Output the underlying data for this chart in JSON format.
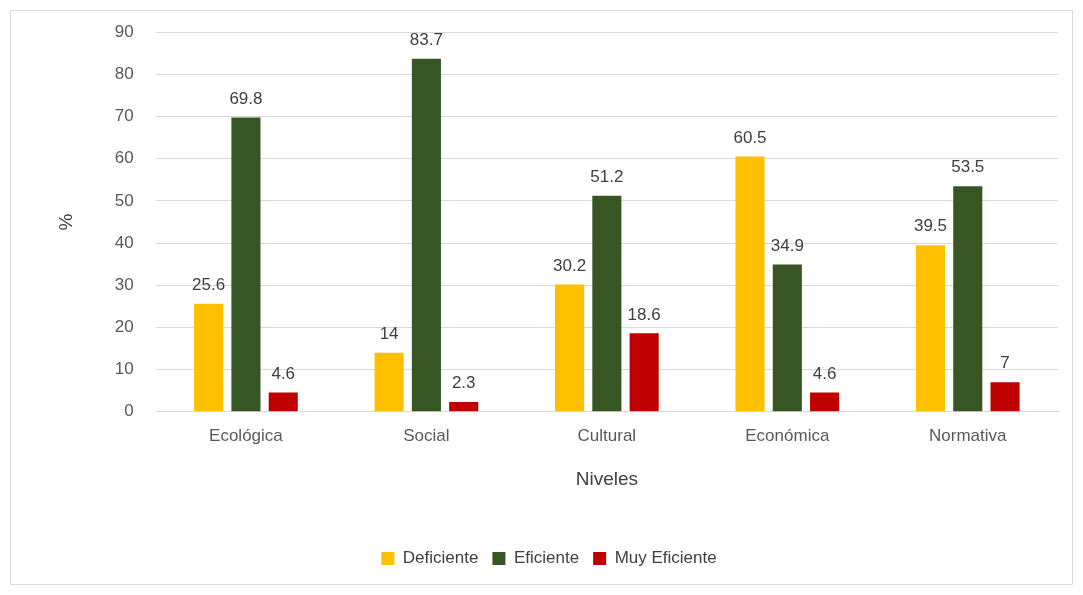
{
  "chart_data": {
    "type": "bar",
    "xlabel": "Niveles",
    "ylabel": "%",
    "categories": [
      "Ecológica",
      "Social",
      "Cultural",
      "Económica",
      "Normativa"
    ],
    "series": [
      {
        "name": "Deficiente",
        "color": "#ffc000",
        "values": [
          25.6,
          14,
          30.2,
          60.5,
          39.5
        ]
      },
      {
        "name": "Eficiente",
        "color": "#375623",
        "values": [
          69.8,
          83.7,
          51.2,
          34.9,
          53.5
        ]
      },
      {
        "name": "Muy Eficiente",
        "color": "#c00000",
        "values": [
          4.6,
          2.3,
          18.6,
          4.6,
          7
        ]
      }
    ],
    "ylim": [
      0,
      90
    ],
    "yticks": [
      0,
      10,
      20,
      30,
      40,
      50,
      60,
      70,
      80,
      90
    ],
    "grid": "y",
    "legend": "bottom",
    "data_labels": true
  }
}
